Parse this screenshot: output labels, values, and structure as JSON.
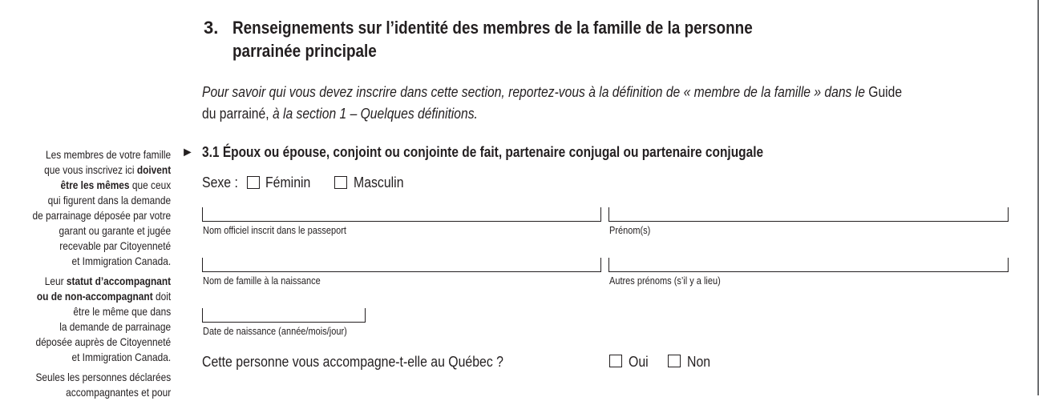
{
  "section": {
    "number": "3.",
    "title_line1": "Renseignements sur l’identité des membres de la famille de la personne",
    "title_line2": "parrainée principale"
  },
  "intro": {
    "part1": "Pour savoir qui vous devez inscrire dans cette section, reportez-vous à la définition de « membre de la famille » dans le ",
    "guide": "Guide",
    "part2": "du parrainé, ",
    "part3": "à la section 1 – Quelques définitions."
  },
  "sidebar": {
    "p1": [
      "Les membres de votre famille",
      "que vous inscrivez ici ",
      "doivent",
      "être les mêmes",
      " que ceux",
      "qui figurent dans la demande",
      "de parrainage déposée par votre",
      "garant ou garante et jugée",
      "recevable par Citoyenneté",
      "et Immigration Canada."
    ],
    "p2": [
      "Leur ",
      "statut d’accompagnant",
      "ou de non-accompagnant",
      " doit",
      "être le même que dans",
      "la demande de parrainage",
      "déposée auprès de Citoyenneté",
      "et Immigration Canada."
    ],
    "p3": [
      "Seules les personnes déclarées",
      "accompagnantes et pour"
    ]
  },
  "subsection": {
    "arrow": "►",
    "title": "3.1  Époux ou épouse, conjoint ou conjointe de fait, partenaire conjugal ou partenaire conjugale"
  },
  "sex": {
    "label": "Sexe :",
    "female": "Féminin",
    "male": "Masculin"
  },
  "fields": {
    "official_name": "Nom officiel inscrit dans le passeport",
    "given_names": "Prénom(s)",
    "birth_name": "Nom de famille à la naissance",
    "other_given": "Autres prénoms (s’il y a lieu)",
    "dob": "Date de naissance (année/mois/jour)"
  },
  "accompany": {
    "question": "Cette personne vous accompagne-t-elle au Québec ?",
    "yes": "Oui",
    "no": "Non"
  }
}
